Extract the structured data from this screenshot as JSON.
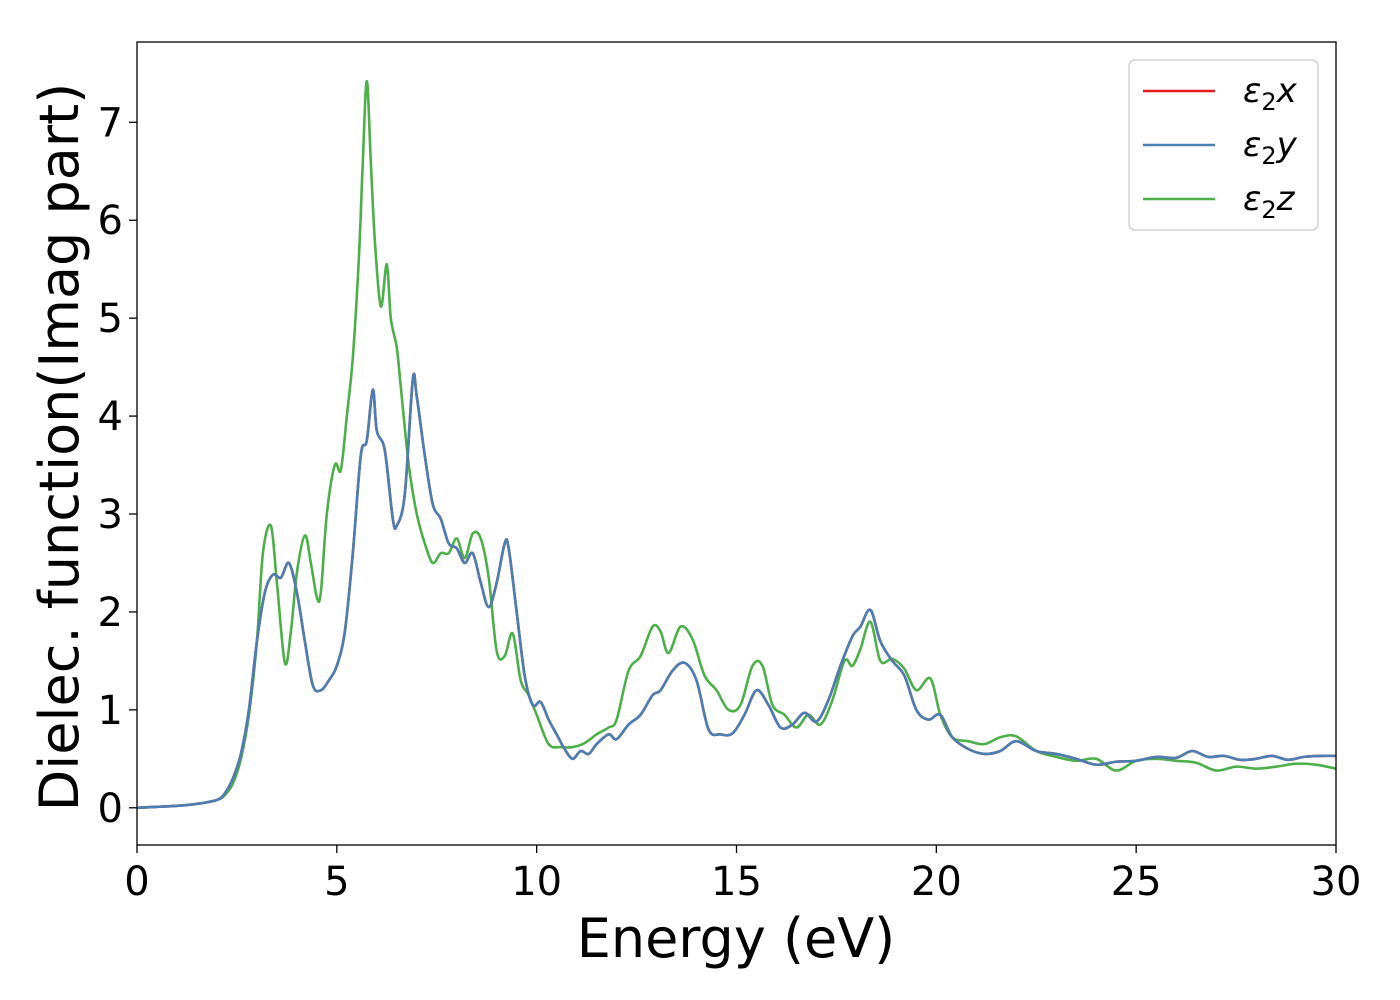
{
  "chart_data": {
    "type": "line",
    "xlabel": "Energy (eV)",
    "ylabel": "Dielec. function(Imag part)",
    "xlim": [
      0,
      30
    ],
    "ylim": [
      -0.38,
      7.82
    ],
    "xticks": [
      "0",
      "5",
      "10",
      "15",
      "20",
      "25",
      "30"
    ],
    "yticks": [
      "0",
      "1",
      "2",
      "3",
      "4",
      "5",
      "6",
      "7"
    ],
    "grid": false,
    "legend_position": "top-right",
    "series": [
      {
        "name": "ε₂x",
        "legend_symbol": "ε",
        "legend_subscript": "2",
        "legend_suffix": "x",
        "color": "#e41a1c",
        "x": [
          0,
          0.5,
          1.0,
          1.5,
          2.0,
          2.2,
          2.4,
          2.6,
          2.8,
          3.0,
          3.2,
          3.4,
          3.6,
          3.8,
          4.0,
          4.2,
          4.4,
          4.6,
          4.8,
          5.0,
          5.2,
          5.4,
          5.6,
          5.75,
          5.9,
          6.0,
          6.2,
          6.4,
          6.5,
          6.7,
          6.9,
          7.0,
          7.2,
          7.4,
          7.6,
          7.8,
          8.0,
          8.2,
          8.4,
          8.6,
          8.8,
          9.0,
          9.2,
          9.3,
          9.5,
          9.7,
          9.9,
          10.1,
          10.3,
          10.5,
          10.7,
          10.9,
          11.1,
          11.3,
          11.5,
          11.8,
          12.0,
          12.3,
          12.6,
          12.9,
          13.1,
          13.4,
          13.7,
          14.0,
          14.3,
          14.6,
          14.9,
          15.2,
          15.5,
          15.8,
          16.1,
          16.4,
          16.7,
          17.0,
          17.3,
          17.6,
          17.9,
          18.1,
          18.35,
          18.6,
          18.9,
          19.2,
          19.5,
          19.8,
          20.1,
          20.4,
          20.8,
          21.2,
          21.6,
          22.0,
          22.5,
          23.0,
          23.5,
          24.0,
          24.5,
          25.0,
          25.5,
          26.0,
          26.4,
          26.8,
          27.2,
          27.6,
          28.0,
          28.4,
          28.8,
          29.2,
          29.6,
          30.0
        ],
        "y": [
          0.0,
          0.01,
          0.02,
          0.04,
          0.08,
          0.15,
          0.3,
          0.55,
          1.0,
          1.7,
          2.2,
          2.38,
          2.35,
          2.5,
          2.2,
          1.7,
          1.25,
          1.2,
          1.3,
          1.45,
          1.8,
          2.6,
          3.6,
          3.75,
          4.27,
          3.85,
          3.65,
          2.95,
          2.88,
          3.2,
          4.37,
          4.2,
          3.6,
          3.1,
          2.95,
          2.7,
          2.65,
          2.5,
          2.6,
          2.3,
          2.05,
          2.3,
          2.7,
          2.65,
          2.0,
          1.35,
          1.05,
          1.08,
          0.9,
          0.75,
          0.6,
          0.5,
          0.58,
          0.55,
          0.65,
          0.75,
          0.7,
          0.85,
          0.95,
          1.15,
          1.2,
          1.4,
          1.48,
          1.3,
          0.8,
          0.75,
          0.76,
          0.95,
          1.2,
          1.05,
          0.82,
          0.85,
          0.97,
          0.88,
          1.1,
          1.45,
          1.75,
          1.85,
          2.02,
          1.7,
          1.5,
          1.35,
          1.0,
          0.9,
          0.95,
          0.72,
          0.6,
          0.55,
          0.58,
          0.68,
          0.58,
          0.55,
          0.5,
          0.44,
          0.47,
          0.48,
          0.52,
          0.51,
          0.58,
          0.52,
          0.53,
          0.49,
          0.5,
          0.53,
          0.49,
          0.52,
          0.53,
          0.53
        ]
      },
      {
        "name": "ε₂y",
        "legend_symbol": "ε",
        "legend_subscript": "2",
        "legend_suffix": "y",
        "color": "#4a7fb3",
        "x": [
          0,
          0.5,
          1.0,
          1.5,
          2.0,
          2.2,
          2.4,
          2.6,
          2.8,
          3.0,
          3.2,
          3.4,
          3.6,
          3.8,
          4.0,
          4.2,
          4.4,
          4.6,
          4.8,
          5.0,
          5.2,
          5.4,
          5.6,
          5.75,
          5.9,
          6.0,
          6.2,
          6.4,
          6.5,
          6.7,
          6.9,
          7.0,
          7.2,
          7.4,
          7.6,
          7.8,
          8.0,
          8.2,
          8.4,
          8.6,
          8.8,
          9.0,
          9.2,
          9.3,
          9.5,
          9.7,
          9.9,
          10.1,
          10.3,
          10.5,
          10.7,
          10.9,
          11.1,
          11.3,
          11.5,
          11.8,
          12.0,
          12.3,
          12.6,
          12.9,
          13.1,
          13.4,
          13.7,
          14.0,
          14.3,
          14.6,
          14.9,
          15.2,
          15.5,
          15.8,
          16.1,
          16.4,
          16.7,
          17.0,
          17.3,
          17.6,
          17.9,
          18.1,
          18.35,
          18.6,
          18.9,
          19.2,
          19.5,
          19.8,
          20.1,
          20.4,
          20.8,
          21.2,
          21.6,
          22.0,
          22.5,
          23.0,
          23.5,
          24.0,
          24.5,
          25.0,
          25.5,
          26.0,
          26.4,
          26.8,
          27.2,
          27.6,
          28.0,
          28.4,
          28.8,
          29.2,
          29.6,
          30.0
        ],
        "y": [
          0.0,
          0.01,
          0.02,
          0.04,
          0.08,
          0.15,
          0.3,
          0.55,
          1.0,
          1.7,
          2.2,
          2.38,
          2.35,
          2.5,
          2.2,
          1.7,
          1.25,
          1.2,
          1.3,
          1.45,
          1.8,
          2.6,
          3.6,
          3.75,
          4.27,
          3.85,
          3.65,
          2.95,
          2.88,
          3.2,
          4.37,
          4.2,
          3.6,
          3.1,
          2.95,
          2.7,
          2.65,
          2.5,
          2.6,
          2.3,
          2.05,
          2.3,
          2.7,
          2.65,
          2.0,
          1.35,
          1.05,
          1.08,
          0.9,
          0.75,
          0.6,
          0.5,
          0.58,
          0.55,
          0.65,
          0.75,
          0.7,
          0.85,
          0.95,
          1.15,
          1.2,
          1.4,
          1.48,
          1.3,
          0.8,
          0.75,
          0.76,
          0.95,
          1.2,
          1.05,
          0.82,
          0.85,
          0.97,
          0.88,
          1.1,
          1.45,
          1.75,
          1.85,
          2.02,
          1.7,
          1.5,
          1.35,
          1.0,
          0.9,
          0.95,
          0.72,
          0.6,
          0.55,
          0.58,
          0.68,
          0.58,
          0.55,
          0.5,
          0.44,
          0.47,
          0.48,
          0.52,
          0.51,
          0.58,
          0.52,
          0.53,
          0.49,
          0.5,
          0.53,
          0.49,
          0.52,
          0.53,
          0.53
        ]
      },
      {
        "name": "ε₂z",
        "legend_symbol": "ε",
        "legend_subscript": "2",
        "legend_suffix": "z",
        "color": "#4daf4a",
        "x": [
          0,
          0.5,
          1.0,
          1.5,
          2.0,
          2.2,
          2.4,
          2.6,
          2.8,
          3.0,
          3.15,
          3.35,
          3.5,
          3.7,
          3.85,
          4.0,
          4.2,
          4.35,
          4.5,
          4.6,
          4.75,
          4.95,
          5.1,
          5.25,
          5.4,
          5.55,
          5.65,
          5.75,
          5.85,
          5.95,
          6.1,
          6.25,
          6.35,
          6.5,
          6.6,
          6.8,
          7.0,
          7.2,
          7.4,
          7.6,
          7.8,
          8.0,
          8.2,
          8.4,
          8.6,
          8.8,
          9.0,
          9.2,
          9.4,
          9.6,
          9.8,
          10.0,
          10.3,
          10.6,
          10.9,
          11.2,
          11.5,
          11.8,
          12.0,
          12.3,
          12.6,
          12.9,
          13.1,
          13.3,
          13.6,
          13.9,
          14.2,
          14.5,
          14.8,
          15.1,
          15.4,
          15.65,
          15.9,
          16.2,
          16.5,
          16.8,
          17.1,
          17.4,
          17.7,
          17.9,
          18.1,
          18.35,
          18.6,
          18.9,
          19.2,
          19.5,
          19.85,
          20.1,
          20.4,
          20.8,
          21.2,
          21.6,
          22.0,
          22.5,
          23.0,
          23.5,
          24.0,
          24.5,
          25.0,
          25.5,
          26.0,
          26.5,
          27.0,
          27.5,
          28.0,
          28.5,
          29.0,
          29.5,
          30.0
        ],
        "y": [
          0.0,
          0.01,
          0.02,
          0.04,
          0.08,
          0.13,
          0.25,
          0.5,
          0.95,
          1.7,
          2.6,
          2.88,
          2.3,
          1.48,
          1.8,
          2.4,
          2.78,
          2.5,
          2.15,
          2.2,
          3.0,
          3.5,
          3.45,
          4.0,
          4.6,
          5.6,
          6.6,
          7.42,
          6.6,
          5.8,
          5.12,
          5.55,
          5.0,
          4.7,
          4.3,
          3.5,
          3.0,
          2.7,
          2.5,
          2.6,
          2.6,
          2.75,
          2.55,
          2.8,
          2.75,
          2.35,
          1.6,
          1.55,
          1.78,
          1.3,
          1.15,
          0.95,
          0.65,
          0.62,
          0.62,
          0.66,
          0.75,
          0.82,
          0.9,
          1.4,
          1.55,
          1.85,
          1.8,
          1.58,
          1.85,
          1.72,
          1.35,
          1.2,
          1.0,
          1.05,
          1.45,
          1.45,
          1.05,
          0.95,
          0.82,
          0.95,
          0.85,
          1.1,
          1.5,
          1.45,
          1.62,
          1.9,
          1.5,
          1.52,
          1.42,
          1.2,
          1.32,
          0.95,
          0.72,
          0.68,
          0.65,
          0.72,
          0.73,
          0.58,
          0.52,
          0.48,
          0.5,
          0.38,
          0.48,
          0.5,
          0.48,
          0.46,
          0.38,
          0.42,
          0.4,
          0.42,
          0.45,
          0.44,
          0.4
        ]
      }
    ]
  }
}
